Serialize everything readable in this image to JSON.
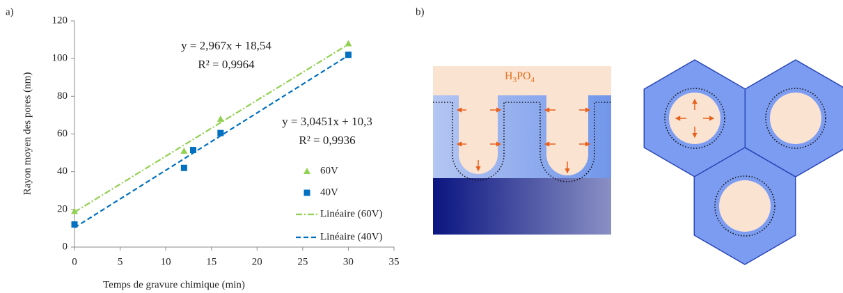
{
  "chart_data": {
    "type": "scatter",
    "panel_label": "a)",
    "x_label": "Temps de gravure chimique (min)",
    "y_label": "Rayon moyen des pores (nm)",
    "xlim": [
      0,
      35
    ],
    "xticks": [
      0,
      5,
      10,
      15,
      20,
      25,
      30,
      35
    ],
    "ylim": [
      0,
      120
    ],
    "yticks": [
      0,
      20,
      40,
      60,
      80,
      100,
      120
    ],
    "grid": false,
    "legend": "lower right",
    "series": [
      {
        "name": "60V",
        "color": "#92d050",
        "marker": "triangle",
        "x": [
          0,
          12,
          16,
          30
        ],
        "values": [
          19,
          51,
          68,
          108
        ]
      },
      {
        "name": "40V",
        "color": "#0070c0",
        "marker": "square",
        "x": [
          0,
          12,
          13,
          16,
          30
        ],
        "values": [
          12,
          42,
          51.5,
          60.5,
          102
        ]
      },
      {
        "name": "Linéaire (60V)",
        "color": "#92d050",
        "line": "dashdot",
        "x": [
          0,
          30
        ],
        "values": [
          18.54,
          107.55
        ]
      },
      {
        "name": "Linéaire (40V)",
        "color": "#0070c0",
        "line": "dashed",
        "x": [
          0,
          30
        ],
        "values": [
          10.3,
          101.65
        ]
      }
    ],
    "annotations": [
      "y = 2,967x + 18,54",
      "R² = 0,9964",
      "y = 3,0451x + 10,3",
      "R² = 0,9936"
    ]
  },
  "diagram": {
    "panel_label": "b)",
    "electrolyte": [
      "H",
      "3",
      "PO",
      "4"
    ]
  }
}
